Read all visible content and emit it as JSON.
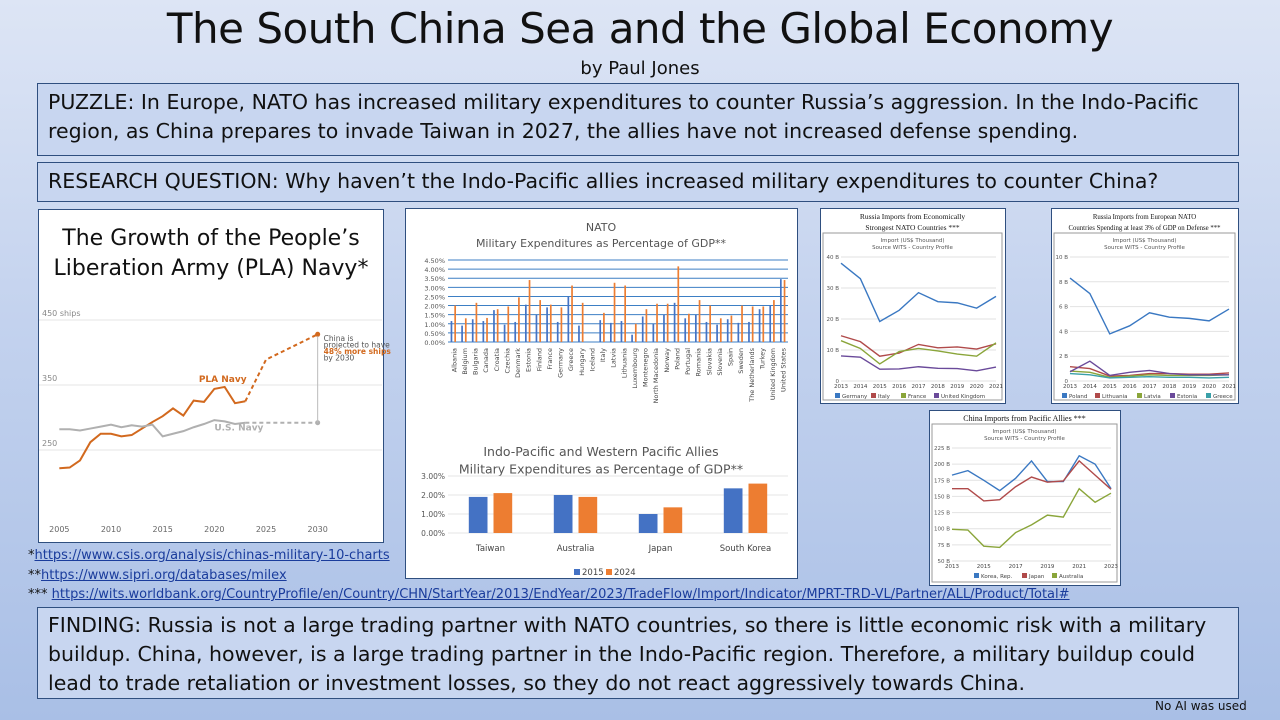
{
  "header": {
    "title": "The South China Sea and the Global Economy",
    "author": "by Paul Jones"
  },
  "puzzle": "PUZZLE: In Europe, NATO has increased military expenditures to counter Russia’s aggression.  In the Indo-Pacific region, as China prepares to invade Taiwan in 2027, the allies have not increased defense spending.",
  "research_question": "RESEARCH QUESTION: Why haven’t the Indo-Pacific allies increased military expenditures to counter China?",
  "finding": "FINDING: Russia is not a large trading partner with NATO countries, so there is little economic risk with a military buildup.  China, however, is a large trading partner in the Indo-Pacific region.  Therefore, a military buildup could lead to trade retaliation or investment losses, so they do not react aggressively towards China.",
  "footnotes": [
    {
      "mark": "*",
      "url": "https://www.csis.org/analysis/chinas-military-10-charts"
    },
    {
      "mark": "**",
      "url": "https://www.sipri.org/databases/milex"
    },
    {
      "mark": "*** ",
      "url": "https://wits.worldbank.org/CountryProfile/en/Country/CHN/StartYear/2013/EndYear/2023/TradeFlow/Import/Indicator/MPRT-TRD-VL/Partner/ALL/Product/Total#"
    }
  ],
  "disclaimer": "No AI was used",
  "colors": {
    "blue": "#4472c4",
    "orange": "#ed7d31",
    "pla": "#d2691e",
    "usnavy": "#b0b0b0",
    "box_border": "#2f4f7f"
  },
  "chart_data": [
    {
      "id": "pla",
      "type": "line",
      "title": "The Growth of the People’s Liberation Army (PLA) Navy*",
      "y_unit_label": "450 ships",
      "yticks": [
        "450 ships",
        "350",
        "250"
      ],
      "ytick_values": [
        450,
        350,
        250
      ],
      "ylim": [
        200,
        460
      ],
      "xticks": [
        2005,
        2010,
        2015,
        2020,
        2025,
        2030
      ],
      "xlim": [
        2004,
        2034
      ],
      "series": [
        {
          "name": "PLA Navy",
          "color": "#d2691e",
          "x": [
            2005,
            2006,
            2007,
            2008,
            2009,
            2010,
            2011,
            2012,
            2013,
            2014,
            2015,
            2016,
            2017,
            2018,
            2019,
            2020,
            2021,
            2022,
            2023
          ],
          "values": [
            222,
            223,
            234,
            262,
            275,
            275,
            271,
            273,
            283,
            293,
            302,
            314,
            303,
            326,
            324,
            344,
            347,
            322,
            325
          ],
          "projection": {
            "x": [
              2023,
              2025,
              2030
            ],
            "values": [
              325,
              389,
              428
            ]
          }
        },
        {
          "name": "U.S. Navy",
          "color": "#b0b0b0",
          "x": [
            2005,
            2006,
            2007,
            2008,
            2009,
            2010,
            2011,
            2012,
            2013,
            2014,
            2015,
            2016,
            2017,
            2018,
            2019,
            2020,
            2021,
            2022,
            2023
          ],
          "values": [
            282,
            282,
            280,
            283,
            286,
            289,
            285,
            288,
            286,
            289,
            271,
            275,
            279,
            285,
            290,
            296,
            294,
            290,
            292
          ],
          "projection": {
            "x": [
              2023,
              2030
            ],
            "values": [
              292,
              292
            ]
          }
        }
      ],
      "annotation": {
        "line1": "China is",
        "line2": "projected to have",
        "highlight": "48% more ships",
        "line4": "by 2030"
      }
    },
    {
      "id": "nato",
      "type": "bar",
      "title": "NATO",
      "subtitle": "Military Expenditures as Percentage of GDP**",
      "ylim": [
        0,
        4.5
      ],
      "yticks": [
        "0.00%",
        "0.50%",
        "1.00%",
        "1.50%",
        "2.00%",
        "2.50%",
        "3.00%",
        "3.50%",
        "4.00%",
        "4.50%"
      ],
      "categories": [
        "Albania",
        "Belgium",
        "Bulgaria",
        "Canada",
        "Croatia",
        "Czechia",
        "Denmark",
        "Estonia",
        "Finland",
        "France",
        "Germany",
        "Greece",
        "Hungary",
        "Iceland",
        "Italy",
        "Latvia",
        "Lithuania",
        "Luxembourg",
        "Montenegro",
        "North Macedonia",
        "Norway",
        "Poland",
        "Portugal",
        "Romania",
        "Slovakia",
        "Slovenia",
        "Spain",
        "Sweden",
        "The Netherlands",
        "Turkey",
        "United Kingdom",
        "United States"
      ],
      "series": [
        {
          "name": "2015",
          "color": "#4472c4",
          "values": [
            1.15,
            0.9,
            1.25,
            1.15,
            1.75,
            0.95,
            1.1,
            2.05,
            1.5,
            1.9,
            1.1,
            2.5,
            0.9,
            0,
            1.2,
            1.05,
            1.15,
            0.4,
            1.4,
            1.0,
            1.5,
            2.15,
            1.3,
            1.5,
            1.1,
            0.95,
            1.25,
            1.05,
            1.1,
            1.8,
            2.0,
            3.45
          ]
        },
        {
          "name": "2024",
          "color": "#ed7d31",
          "values": [
            2.0,
            1.3,
            2.15,
            1.32,
            1.8,
            1.95,
            2.45,
            3.4,
            2.3,
            2.05,
            1.9,
            3.1,
            2.15,
            0,
            1.6,
            3.25,
            3.1,
            1.0,
            1.8,
            2.1,
            2.1,
            4.15,
            1.55,
            2.3,
            2.0,
            1.3,
            1.45,
            2.0,
            1.95,
            1.95,
            2.3,
            3.4
          ]
        }
      ]
    },
    {
      "id": "indo",
      "type": "bar",
      "title": "Indo-Pacific and Western Pacific Allies",
      "subtitle": "Military Expenditures as Percentage of GDP**",
      "ylim": [
        0,
        3
      ],
      "yticks": [
        "0.00%",
        "1.00%",
        "2.00%",
        "3.00%"
      ],
      "categories": [
        "Taiwan",
        "Australia",
        "Japan",
        "South Korea"
      ],
      "legend": "bottom",
      "series": [
        {
          "name": "2015",
          "color": "#4472c4",
          "values": [
            1.9,
            2.0,
            1.0,
            2.35
          ]
        },
        {
          "name": "2024",
          "color": "#ed7d31",
          "values": [
            2.1,
            1.9,
            1.35,
            2.6
          ]
        }
      ]
    },
    {
      "id": "ru1",
      "type": "line",
      "title": "Russia Imports from Economically Strongest NATO Countries ***",
      "subtitle1": "Import (US$ Thousand)",
      "subtitle2": "Source WITS - Country Profile",
      "ylim": [
        0,
        40
      ],
      "yticks": [
        "0",
        "10 B",
        "20 B",
        "30 B",
        "40 B"
      ],
      "x": [
        2013,
        2014,
        2015,
        2016,
        2017,
        2018,
        2019,
        2020,
        2021
      ],
      "legend": "bottom",
      "series": [
        {
          "name": "Germany",
          "color": "#3a78c2",
          "values": [
            38,
            33,
            19.2,
            22.8,
            28.5,
            25.6,
            25.2,
            23.5,
            27.3
          ]
        },
        {
          "name": "Italy",
          "color": "#b04a4a",
          "values": [
            14.6,
            12.7,
            8.0,
            9.0,
            11.8,
            10.7,
            11.0,
            10.3,
            12.0
          ]
        },
        {
          "name": "France",
          "color": "#8aa53a",
          "values": [
            13,
            10.5,
            5.5,
            9.5,
            10.5,
            9.7,
            8.7,
            8.0,
            12.3
          ]
        },
        {
          "name": "United Kingdom",
          "color": "#6a4a9a",
          "values": [
            8.1,
            7.7,
            3.8,
            3.9,
            4.6,
            4.1,
            4.0,
            3.3,
            4.5
          ]
        }
      ]
    },
    {
      "id": "ru2",
      "type": "line",
      "title": "Russia Imports from European NATO Countries Spending at least 3% of GDP on Defense ***",
      "subtitle1": "Import (US$ Thousand)",
      "subtitle2": "Source WITS - Country Profile",
      "ylim": [
        0,
        10
      ],
      "yticks": [
        "0",
        "2 B",
        "4 B",
        "6 B",
        "8 B",
        "10 B"
      ],
      "x": [
        2013,
        2014,
        2015,
        2016,
        2017,
        2018,
        2019,
        2020,
        2021
      ],
      "legend": "bottom",
      "series": [
        {
          "name": "Poland",
          "color": "#3a78c2",
          "values": [
            8.3,
            7.05,
            3.8,
            4.45,
            5.5,
            5.15,
            5.05,
            4.85,
            5.8
          ]
        },
        {
          "name": "Lithuania",
          "color": "#b04a4a",
          "values": [
            1.15,
            1.0,
            0.4,
            0.45,
            0.6,
            0.6,
            0.55,
            0.55,
            0.65
          ]
        },
        {
          "name": "Latvia",
          "color": "#8aa53a",
          "values": [
            0.8,
            0.7,
            0.3,
            0.4,
            0.5,
            0.45,
            0.45,
            0.45,
            0.5
          ]
        },
        {
          "name": "Estonia",
          "color": "#6a4a9a",
          "values": [
            0.75,
            1.6,
            0.45,
            0.7,
            0.85,
            0.6,
            0.5,
            0.5,
            0.5
          ]
        },
        {
          "name": "Greece",
          "color": "#3aa0a8",
          "values": [
            0.6,
            0.5,
            0.25,
            0.3,
            0.35,
            0.3,
            0.3,
            0.25,
            0.3
          ]
        }
      ]
    },
    {
      "id": "cn",
      "type": "line",
      "title": "China Imports from Pacific Allies ***",
      "subtitle1": "Import (US$ Thousand)",
      "subtitle2": "Source WITS - Country Profile",
      "ylim": [
        50,
        225
      ],
      "yticks": [
        "50 B",
        "75 B",
        "100 B",
        "125 B",
        "150 B",
        "175 B",
        "200 B",
        "225 B"
      ],
      "x": [
        2013,
        2014,
        2015,
        2016,
        2017,
        2018,
        2019,
        2020,
        2021,
        2022,
        2023
      ],
      "xtick_labels": [
        2013,
        2015,
        2017,
        2019,
        2021,
        2023
      ],
      "legend": "bottom",
      "series": [
        {
          "name": "Korea, Rep.",
          "color": "#3a78c2",
          "values": [
            183,
            190,
            175,
            159,
            178,
            205,
            173,
            173,
            213,
            200,
            162
          ]
        },
        {
          "name": "Japan",
          "color": "#b04a4a",
          "values": [
            162,
            162,
            143,
            145,
            165,
            180,
            172,
            174,
            205,
            183,
            161
          ]
        },
        {
          "name": "Australia",
          "color": "#8aa53a",
          "values": [
            99,
            98,
            73,
            71,
            94,
            106,
            121,
            118,
            162,
            141,
            155
          ]
        }
      ]
    }
  ]
}
